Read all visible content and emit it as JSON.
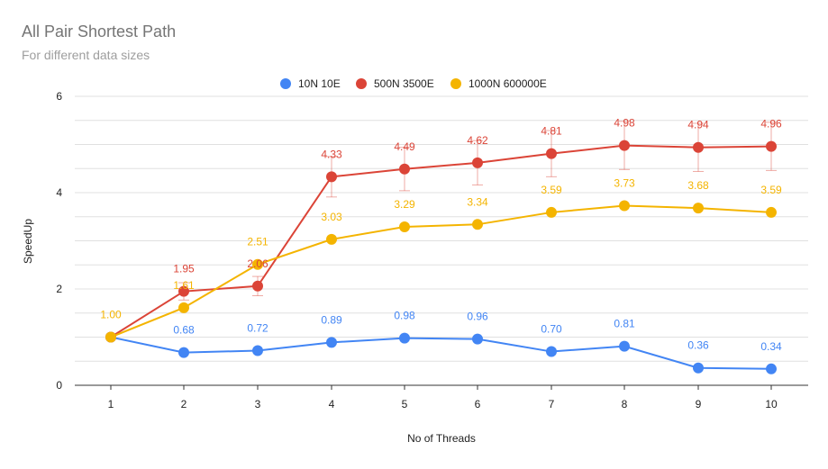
{
  "chart_data": {
    "type": "line",
    "title": "All Pair Shortest Path",
    "subtitle": "For different data sizes",
    "xlabel": "No of Threads",
    "ylabel": "SpeedUp",
    "x": [
      1,
      2,
      3,
      4,
      5,
      6,
      7,
      8,
      9,
      10
    ],
    "xticks": [
      "1",
      "2",
      "3",
      "4",
      "5",
      "6",
      "7",
      "8",
      "9",
      "10"
    ],
    "ylim": [
      0,
      6
    ],
    "yticks": [
      "0",
      "2",
      "4",
      "6"
    ],
    "grid": true,
    "legend_position": "top",
    "series": [
      {
        "name": "10N 10E",
        "color": "#4285F4",
        "values": [
          1.0,
          0.68,
          0.72,
          0.89,
          0.98,
          0.96,
          0.7,
          0.81,
          0.36,
          0.34
        ],
        "labels": [
          "",
          "0.68",
          "0.72",
          "0.89",
          "0.98",
          "0.96",
          "0.70",
          "0.81",
          "0.36",
          "0.34"
        ]
      },
      {
        "name": "500N 3500E",
        "color": "#DB4437",
        "values": [
          1.0,
          1.95,
          2.06,
          4.33,
          4.49,
          4.62,
          4.81,
          4.98,
          4.94,
          4.96
        ],
        "labels": [
          "",
          "1.95",
          "2.06",
          "4.33",
          "4.49",
          "4.62",
          "4.81",
          "4.98",
          "4.94",
          "4.96"
        ],
        "error_bars": [
          0.0,
          0.18,
          0.2,
          0.42,
          0.45,
          0.46,
          0.48,
          0.5,
          0.5,
          0.5
        ]
      },
      {
        "name": "1000N 600000E",
        "color": "#F4B400",
        "values": [
          1.0,
          1.61,
          2.51,
          3.03,
          3.29,
          3.34,
          3.59,
          3.73,
          3.68,
          3.59
        ],
        "labels": [
          "1.00",
          "1.61",
          "2.51",
          "3.03",
          "3.29",
          "3.34",
          "3.59",
          "3.73",
          "3.68",
          "3.59"
        ]
      }
    ]
  }
}
